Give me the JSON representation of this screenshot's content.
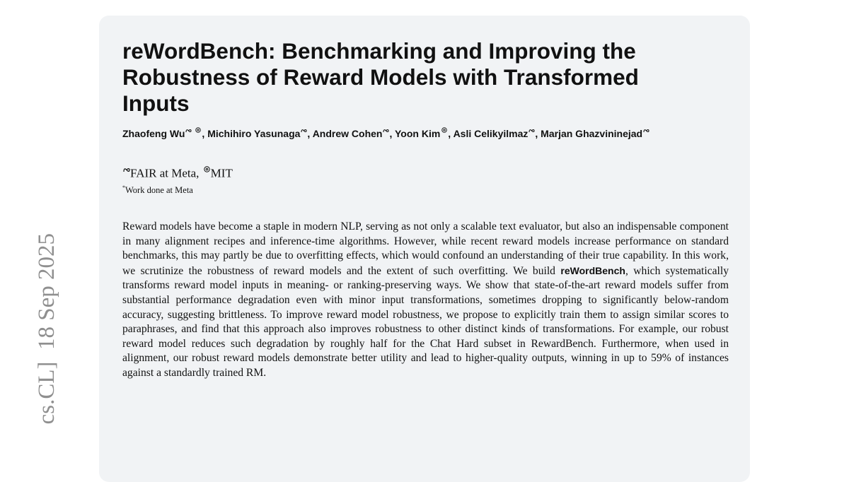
{
  "stamp": "cs.CL]  18 Sep 2025",
  "title_lines": [
    "reWordBench: Benchmarking and Improving the",
    "Robustness of Reward Models with Transformed",
    "Inputs"
  ],
  "authors": [
    "Zhaofeng Wu",
    "Michihiro Yasunaga",
    "Andrew Cohen",
    "Yoon Kim",
    "Asli Celikyilmaz",
    "Marjan Ghazvininejad"
  ],
  "authors_separator": ",",
  "affiliations": [
    "FAIR at Meta",
    "MIT"
  ],
  "affiliations_separator": ",",
  "note": {
    "marker": "*",
    "text": "Work done at Meta"
  },
  "abstract": {
    "before": "Reward models have become a staple in modern NLP, serving as not only a scalable text evaluator, but also an indispensable component in many alignment recipes and inference-time algorithms. However, while recent reward models increase performance on standard benchmarks, this may partly be due to overfitting effects, which would confound an understanding of their true capability. In this work, we scrutinize the robustness of reward models and the extent of such overfitting. We build",
    "bold": "reWordBench",
    "after": ", which systematically transforms reward model inputs in meaning- or ranking-preserving ways. We show that state-of-the-art reward models suffer from substantial performance degradation even with minor input transformations, sometimes dropping to significantly below-random accuracy, suggesting brittleness. To improve reward model robustness, we propose to explicitly train them to assign similar scores to paraphrases, and find that this approach also improves robustness to other distinct kinds of transformations. For example, our robust reward model reduces such degradation by roughly half for the Chat Hard subset in RewardBench. Furthermore, when used in alignment, our robust reward models demonstrate better utility and lead to higher-quality outputs, winning in up to 59% of instances against a standardly trained RM."
  }
}
